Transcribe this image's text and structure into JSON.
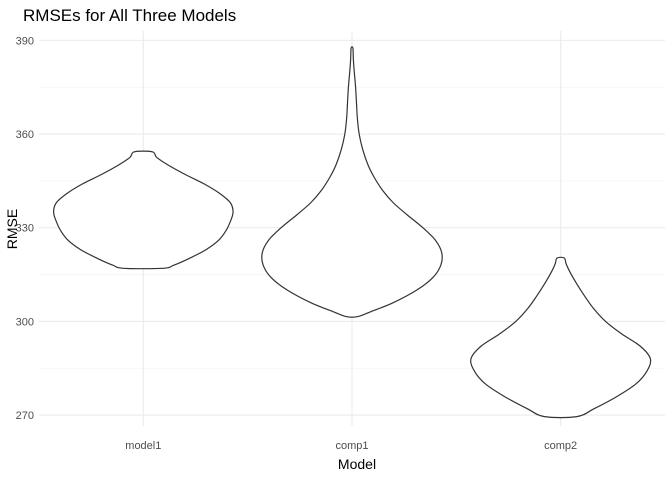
{
  "chart_data": {
    "type": "violin",
    "title": "RMSEs for All Three Models",
    "xlabel": "Model",
    "ylabel": "RMSE",
    "categories": [
      "model1",
      "comp1",
      "comp2"
    ],
    "y_ticks": [
      270,
      300,
      330,
      360,
      390
    ],
    "ylim": [
      266.5,
      393
    ],
    "grid": true,
    "series": [
      {
        "category": "model1",
        "min": 317,
        "max": 354.3,
        "profile": [
          {
            "y": 317,
            "w": 0.22
          },
          {
            "y": 318,
            "w": 0.34
          },
          {
            "y": 320,
            "w": 0.5
          },
          {
            "y": 323,
            "w": 0.7
          },
          {
            "y": 326,
            "w": 0.84
          },
          {
            "y": 329,
            "w": 0.92
          },
          {
            "y": 332,
            "w": 0.97
          },
          {
            "y": 335,
            "w": 1.0
          },
          {
            "y": 338,
            "w": 0.97
          },
          {
            "y": 341,
            "w": 0.85
          },
          {
            "y": 344,
            "w": 0.68
          },
          {
            "y": 347,
            "w": 0.47
          },
          {
            "y": 350,
            "w": 0.28
          },
          {
            "y": 352.5,
            "w": 0.15
          },
          {
            "y": 354.3,
            "w": 0.1
          }
        ]
      },
      {
        "category": "comp1",
        "min": 301.5,
        "max": 387.5,
        "profile": [
          {
            "y": 301.5,
            "w": 0.06
          },
          {
            "y": 303,
            "w": 0.2
          },
          {
            "y": 306,
            "w": 0.46
          },
          {
            "y": 310,
            "w": 0.72
          },
          {
            "y": 314,
            "w": 0.9
          },
          {
            "y": 318,
            "w": 0.99
          },
          {
            "y": 322,
            "w": 1.0
          },
          {
            "y": 326,
            "w": 0.93
          },
          {
            "y": 330,
            "w": 0.79
          },
          {
            "y": 334,
            "w": 0.62
          },
          {
            "y": 338,
            "w": 0.46
          },
          {
            "y": 342,
            "w": 0.34
          },
          {
            "y": 346,
            "w": 0.25
          },
          {
            "y": 350,
            "w": 0.18
          },
          {
            "y": 355,
            "w": 0.12
          },
          {
            "y": 360,
            "w": 0.08
          },
          {
            "y": 365,
            "w": 0.06
          },
          {
            "y": 370,
            "w": 0.05
          },
          {
            "y": 375,
            "w": 0.04
          },
          {
            "y": 380,
            "w": 0.025
          },
          {
            "y": 384,
            "w": 0.015
          },
          {
            "y": 387.5,
            "w": 0.01
          }
        ]
      },
      {
        "category": "comp2",
        "min": 269.5,
        "max": 320.3,
        "profile": [
          {
            "y": 269.5,
            "w": 0.18
          },
          {
            "y": 272,
            "w": 0.37
          },
          {
            "y": 276,
            "w": 0.63
          },
          {
            "y": 280,
            "w": 0.84
          },
          {
            "y": 284,
            "w": 0.96
          },
          {
            "y": 288,
            "w": 1.0
          },
          {
            "y": 292,
            "w": 0.89
          },
          {
            "y": 296,
            "w": 0.68
          },
          {
            "y": 300,
            "w": 0.5
          },
          {
            "y": 304,
            "w": 0.37
          },
          {
            "y": 308,
            "w": 0.27
          },
          {
            "y": 312,
            "w": 0.18
          },
          {
            "y": 316,
            "w": 0.1
          },
          {
            "y": 318.5,
            "w": 0.06
          },
          {
            "y": 320.3,
            "w": 0.04
          }
        ]
      }
    ]
  }
}
